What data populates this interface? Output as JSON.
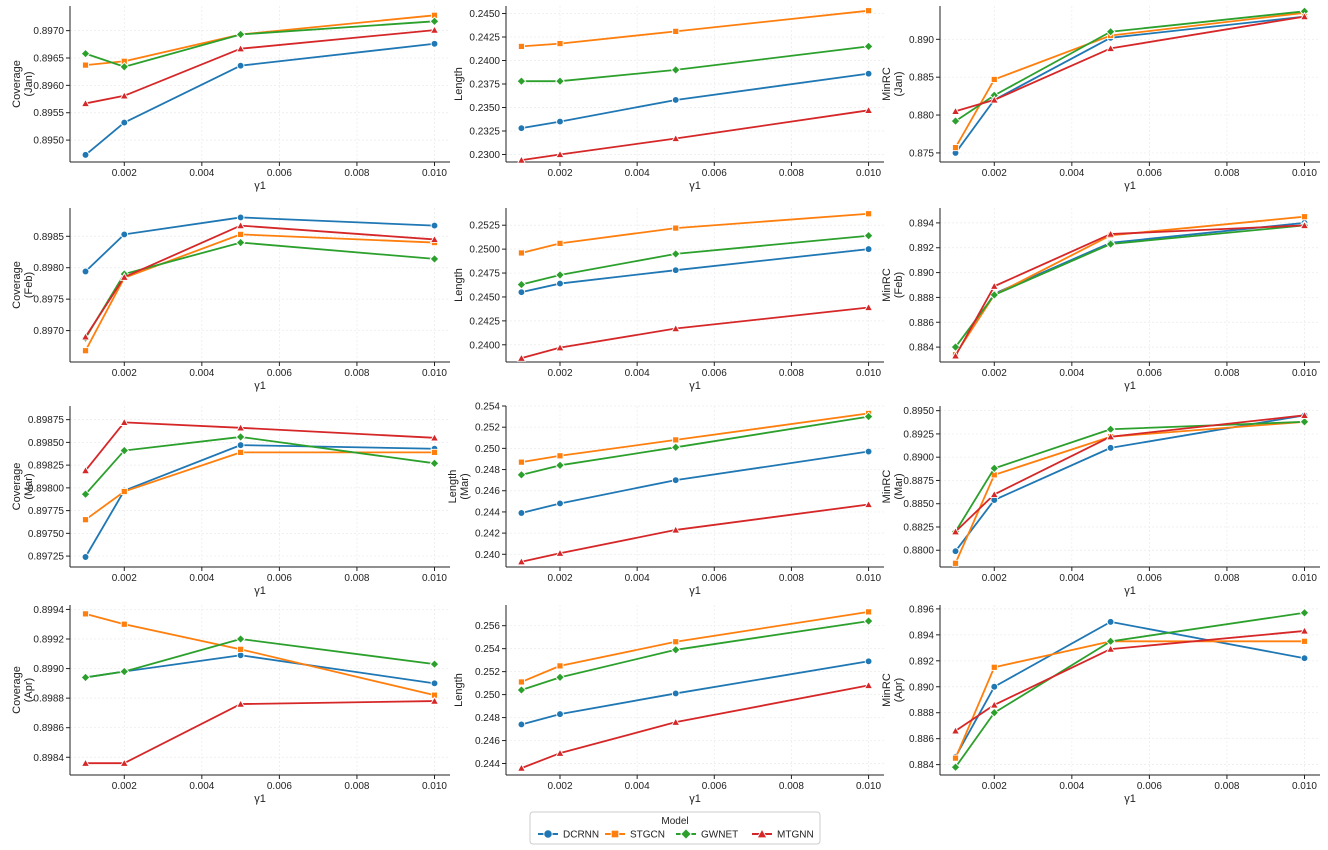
{
  "chart_data": [
    {
      "type": "line",
      "row": 0,
      "col": 0,
      "xlabel": "γ1",
      "ylabel": [
        "Coverage",
        "(Jan)"
      ],
      "xlim": [
        0.0006,
        0.0104
      ],
      "ylim": [
        0.8946,
        0.89745
      ],
      "xticks": [
        0.002,
        0.004,
        0.006,
        0.008,
        0.01
      ],
      "xtick_labels": [
        "0.002",
        "0.004",
        "0.006",
        "0.008",
        "0.010"
      ],
      "yticks": [
        0.895,
        0.8955,
        0.896,
        0.8965,
        0.897
      ],
      "ytick_labels": [
        "0.8950",
        "0.8955",
        "0.8960",
        "0.8965",
        "0.8970"
      ],
      "x": [
        0.001,
        0.002,
        0.005,
        0.01
      ],
      "series": [
        {
          "name": "DCRNN",
          "values": [
            0.89473,
            0.89532,
            0.89636,
            0.89676
          ]
        },
        {
          "name": "STGCN",
          "values": [
            0.89637,
            0.89644,
            0.89693,
            0.89728
          ]
        },
        {
          "name": "GWNET",
          "values": [
            0.89658,
            0.89634,
            0.89693,
            0.89717
          ]
        },
        {
          "name": "MTGNN",
          "values": [
            0.89567,
            0.89581,
            0.89667,
            0.89701
          ]
        }
      ]
    },
    {
      "type": "line",
      "row": 0,
      "col": 1,
      "xlabel": "γ1",
      "ylabel": [
        "Length"
      ],
      "xlim": [
        0.0006,
        0.0104
      ],
      "ylim": [
        0.2292,
        0.2458
      ],
      "xticks": [
        0.002,
        0.004,
        0.006,
        0.008,
        0.01
      ],
      "xtick_labels": [
        "0.002",
        "0.004",
        "0.006",
        "0.008",
        "0.010"
      ],
      "yticks": [
        0.23,
        0.2325,
        0.235,
        0.2375,
        0.24,
        0.2425,
        0.245
      ],
      "ytick_labels": [
        "0.2300",
        "0.2325",
        "0.2350",
        "0.2375",
        "0.2400",
        "0.2425",
        "0.2450"
      ],
      "x": [
        0.001,
        0.002,
        0.005,
        0.01
      ],
      "series": [
        {
          "name": "DCRNN",
          "values": [
            0.2328,
            0.2335,
            0.2358,
            0.2386
          ]
        },
        {
          "name": "STGCN",
          "values": [
            0.2415,
            0.2418,
            0.2431,
            0.2453
          ]
        },
        {
          "name": "GWNET",
          "values": [
            0.2378,
            0.2378,
            0.239,
            0.2415
          ]
        },
        {
          "name": "MTGNN",
          "values": [
            0.2294,
            0.23,
            0.2317,
            0.2347
          ]
        }
      ]
    },
    {
      "type": "line",
      "row": 0,
      "col": 2,
      "xlabel": "γ1",
      "ylabel": [
        "MinRC",
        "(Jan)"
      ],
      "xlim": [
        0.0006,
        0.0104
      ],
      "ylim": [
        0.8738,
        0.8944
      ],
      "xticks": [
        0.002,
        0.004,
        0.006,
        0.008,
        0.01
      ],
      "xtick_labels": [
        "0.002",
        "0.004",
        "0.006",
        "0.008",
        "0.010"
      ],
      "yticks": [
        0.875,
        0.88,
        0.885,
        0.89
      ],
      "ytick_labels": [
        "0.875",
        "0.880",
        "0.885",
        "0.890"
      ],
      "x": [
        0.001,
        0.002,
        0.005,
        0.01
      ],
      "series": [
        {
          "name": "DCRNN",
          "values": [
            0.875,
            0.882,
            0.8902,
            0.893
          ]
        },
        {
          "name": "STGCN",
          "values": [
            0.8757,
            0.8847,
            0.8905,
            0.8935
          ]
        },
        {
          "name": "GWNET",
          "values": [
            0.8792,
            0.8826,
            0.891,
            0.8937
          ]
        },
        {
          "name": "MTGNN",
          "values": [
            0.8805,
            0.882,
            0.8888,
            0.893
          ]
        }
      ]
    },
    {
      "type": "line",
      "row": 1,
      "col": 0,
      "xlabel": "γ1",
      "ylabel": [
        "Coverage",
        "(Feb)"
      ],
      "xlim": [
        0.0006,
        0.0104
      ],
      "ylim": [
        0.8965,
        0.89895
      ],
      "xticks": [
        0.002,
        0.004,
        0.006,
        0.008,
        0.01
      ],
      "xtick_labels": [
        "0.002",
        "0.004",
        "0.006",
        "0.008",
        "0.010"
      ],
      "yticks": [
        0.897,
        0.8975,
        0.898,
        0.8985
      ],
      "ytick_labels": [
        "0.8970",
        "0.8975",
        "0.8980",
        "0.8985"
      ],
      "x": [
        0.001,
        0.002,
        0.005,
        0.01
      ],
      "series": [
        {
          "name": "DCRNN",
          "values": [
            0.89794,
            0.89853,
            0.8988,
            0.89867
          ]
        },
        {
          "name": "STGCN",
          "values": [
            0.89668,
            0.89784,
            0.89853,
            0.8984
          ]
        },
        {
          "name": "GWNET",
          "values": [
            0.89688,
            0.8979,
            0.8984,
            0.89814
          ]
        },
        {
          "name": "MTGNN",
          "values": [
            0.8969,
            0.89785,
            0.89867,
            0.89845
          ]
        }
      ]
    },
    {
      "type": "line",
      "row": 1,
      "col": 1,
      "xlabel": "γ1",
      "ylabel": [
        "Length"
      ],
      "xlim": [
        0.0006,
        0.0104
      ],
      "ylim": [
        0.2382,
        0.2543
      ],
      "xticks": [
        0.002,
        0.004,
        0.006,
        0.008,
        0.01
      ],
      "xtick_labels": [
        "0.002",
        "0.004",
        "0.006",
        "0.008",
        "0.010"
      ],
      "yticks": [
        0.24,
        0.2425,
        0.245,
        0.2475,
        0.25,
        0.2525
      ],
      "ytick_labels": [
        "0.2400",
        "0.2425",
        "0.2450",
        "0.2475",
        "0.2500",
        "0.2525"
      ],
      "x": [
        0.001,
        0.002,
        0.005,
        0.01
      ],
      "series": [
        {
          "name": "DCRNN",
          "values": [
            0.2455,
            0.2464,
            0.2478,
            0.25
          ]
        },
        {
          "name": "STGCN",
          "values": [
            0.2496,
            0.2506,
            0.2522,
            0.2537
          ]
        },
        {
          "name": "GWNET",
          "values": [
            0.2463,
            0.2473,
            0.2495,
            0.2514
          ]
        },
        {
          "name": "MTGNN",
          "values": [
            0.2386,
            0.2397,
            0.2417,
            0.2439
          ]
        }
      ]
    },
    {
      "type": "line",
      "row": 1,
      "col": 2,
      "xlabel": "γ1",
      "ylabel": [
        "MinRC",
        "(Feb)"
      ],
      "xlim": [
        0.0006,
        0.0104
      ],
      "ylim": [
        0.8828,
        0.8952
      ],
      "xticks": [
        0.002,
        0.004,
        0.006,
        0.008,
        0.01
      ],
      "xtick_labels": [
        "0.002",
        "0.004",
        "0.006",
        "0.008",
        "0.010"
      ],
      "yticks": [
        0.884,
        0.886,
        0.888,
        0.89,
        0.892,
        0.894
      ],
      "ytick_labels": [
        "0.884",
        "0.886",
        "0.888",
        "0.890",
        "0.892",
        "0.894"
      ],
      "x": [
        0.001,
        0.002,
        0.005,
        0.01
      ],
      "series": [
        {
          "name": "DCRNN",
          "values": [
            0.8834,
            0.8883,
            0.8924,
            0.894
          ]
        },
        {
          "name": "STGCN",
          "values": [
            0.8834,
            0.8882,
            0.893,
            0.8945
          ]
        },
        {
          "name": "GWNET",
          "values": [
            0.884,
            0.8882,
            0.8923,
            0.8938
          ]
        },
        {
          "name": "MTGNN",
          "values": [
            0.8833,
            0.8889,
            0.8931,
            0.8938
          ]
        }
      ]
    },
    {
      "type": "line",
      "row": 2,
      "col": 0,
      "xlabel": "γ1",
      "ylabel": [
        "Coverage",
        "(Mar)"
      ],
      "xlim": [
        0.0006,
        0.0104
      ],
      "ylim": [
        0.89713,
        0.8989
      ],
      "xticks": [
        0.002,
        0.004,
        0.006,
        0.008,
        0.01
      ],
      "xtick_labels": [
        "0.002",
        "0.004",
        "0.006",
        "0.008",
        "0.010"
      ],
      "yticks": [
        0.89725,
        0.8975,
        0.89775,
        0.898,
        0.89825,
        0.8985,
        0.89875
      ],
      "ytick_labels": [
        "0.89725",
        "0.89750",
        "0.89775",
        "0.89800",
        "0.89825",
        "0.89850",
        "0.89875"
      ],
      "x": [
        0.001,
        0.002,
        0.005,
        0.01
      ],
      "series": [
        {
          "name": "DCRNN",
          "values": [
            0.89724,
            0.89797,
            0.89847,
            0.89843
          ]
        },
        {
          "name": "STGCN",
          "values": [
            0.89765,
            0.89796,
            0.89839,
            0.89839
          ]
        },
        {
          "name": "GWNET",
          "values": [
            0.89793,
            0.89841,
            0.89856,
            0.89827
          ]
        },
        {
          "name": "MTGNN",
          "values": [
            0.89819,
            0.89872,
            0.89866,
            0.89855
          ]
        }
      ]
    },
    {
      "type": "line",
      "row": 2,
      "col": 1,
      "xlabel": "γ1",
      "ylabel": [
        "Length",
        "(Mar)"
      ],
      "xlim": [
        0.0006,
        0.0104
      ],
      "ylim": [
        0.2388,
        0.254
      ],
      "xticks": [
        0.002,
        0.004,
        0.006,
        0.008,
        0.01
      ],
      "xtick_labels": [
        "0.002",
        "0.004",
        "0.006",
        "0.008",
        "0.010"
      ],
      "yticks": [
        0.24,
        0.242,
        0.244,
        0.246,
        0.248,
        0.25,
        0.252,
        0.254
      ],
      "ytick_labels": [
        "0.240",
        "0.242",
        "0.244",
        "0.246",
        "0.248",
        "0.250",
        "0.252",
        "0.254"
      ],
      "x": [
        0.001,
        0.002,
        0.005,
        0.01
      ],
      "series": [
        {
          "name": "DCRNN",
          "values": [
            0.2439,
            0.2448,
            0.247,
            0.2497
          ]
        },
        {
          "name": "STGCN",
          "values": [
            0.2487,
            0.2493,
            0.2508,
            0.2533
          ]
        },
        {
          "name": "GWNET",
          "values": [
            0.2475,
            0.2484,
            0.2501,
            0.253
          ]
        },
        {
          "name": "MTGNN",
          "values": [
            0.2393,
            0.2401,
            0.2423,
            0.2447
          ]
        }
      ]
    },
    {
      "type": "line",
      "row": 2,
      "col": 2,
      "xlabel": "γ1",
      "ylabel": [
        "MinRC",
        "(Mar)"
      ],
      "xlim": [
        0.0006,
        0.0104
      ],
      "ylim": [
        0.8782,
        0.8955
      ],
      "xticks": [
        0.002,
        0.004,
        0.006,
        0.008,
        0.01
      ],
      "xtick_labels": [
        "0.002",
        "0.004",
        "0.006",
        "0.008",
        "0.010"
      ],
      "yticks": [
        0.88,
        0.8825,
        0.885,
        0.8875,
        0.89,
        0.8925,
        0.895
      ],
      "ytick_labels": [
        "0.8800",
        "0.8825",
        "0.8850",
        "0.8875",
        "0.8900",
        "0.8925",
        "0.8950"
      ],
      "x": [
        0.001,
        0.002,
        0.005,
        0.01
      ],
      "series": [
        {
          "name": "DCRNN",
          "values": [
            0.8799,
            0.8854,
            0.891,
            0.8945
          ]
        },
        {
          "name": "STGCN",
          "values": [
            0.8786,
            0.8881,
            0.8922,
            0.8938
          ]
        },
        {
          "name": "GWNET",
          "values": [
            0.882,
            0.8888,
            0.893,
            0.8938
          ]
        },
        {
          "name": "MTGNN",
          "values": [
            0.882,
            0.886,
            0.8922,
            0.8945
          ]
        }
      ]
    },
    {
      "type": "line",
      "row": 3,
      "col": 0,
      "xlabel": "γ1",
      "ylabel": [
        "Coverage",
        "(Apr)"
      ],
      "xlim": [
        0.0006,
        0.0104
      ],
      "ylim": [
        0.89828,
        0.89943
      ],
      "xticks": [
        0.002,
        0.004,
        0.006,
        0.008,
        0.01
      ],
      "xtick_labels": [
        "0.002",
        "0.004",
        "0.006",
        "0.008",
        "0.010"
      ],
      "yticks": [
        0.8984,
        0.8986,
        0.8988,
        0.899,
        0.8992,
        0.8994
      ],
      "ytick_labels": [
        "0.8984",
        "0.8986",
        "0.8988",
        "0.8990",
        "0.8992",
        "0.8994"
      ],
      "x": [
        0.001,
        0.002,
        0.005,
        0.01
      ],
      "series": [
        {
          "name": "DCRNN",
          "values": [
            0.89894,
            0.89898,
            0.89909,
            0.8989
          ]
        },
        {
          "name": "STGCN",
          "values": [
            0.89937,
            0.8993,
            0.89913,
            0.89882
          ]
        },
        {
          "name": "GWNET",
          "values": [
            0.89894,
            0.89898,
            0.8992,
            0.89903
          ]
        },
        {
          "name": "MTGNN",
          "values": [
            0.89836,
            0.89836,
            0.89876,
            0.89878
          ]
        }
      ]
    },
    {
      "type": "line",
      "row": 3,
      "col": 1,
      "xlabel": "γ1",
      "ylabel": [
        "Length"
      ],
      "xlim": [
        0.0006,
        0.0104
      ],
      "ylim": [
        0.243,
        0.2578
      ],
      "xticks": [
        0.002,
        0.004,
        0.006,
        0.008,
        0.01
      ],
      "xtick_labels": [
        "0.002",
        "0.004",
        "0.006",
        "0.008",
        "0.010"
      ],
      "yticks": [
        0.244,
        0.246,
        0.248,
        0.25,
        0.252,
        0.254,
        0.256
      ],
      "ytick_labels": [
        "0.244",
        "0.246",
        "0.248",
        "0.250",
        "0.252",
        "0.254",
        "0.256"
      ],
      "x": [
        0.001,
        0.002,
        0.005,
        0.01
      ],
      "series": [
        {
          "name": "DCRNN",
          "values": [
            0.2474,
            0.2483,
            0.2501,
            0.2529
          ]
        },
        {
          "name": "STGCN",
          "values": [
            0.2511,
            0.2525,
            0.2546,
            0.2572
          ]
        },
        {
          "name": "GWNET",
          "values": [
            0.2504,
            0.2515,
            0.2539,
            0.2564
          ]
        },
        {
          "name": "MTGNN",
          "values": [
            0.2436,
            0.2449,
            0.2476,
            0.2508
          ]
        }
      ]
    },
    {
      "type": "line",
      "row": 3,
      "col": 2,
      "xlabel": "γ1",
      "ylabel": [
        "MinRC",
        "(Apr)"
      ],
      "xlim": [
        0.0006,
        0.0104
      ],
      "ylim": [
        0.8832,
        0.8963
      ],
      "xticks": [
        0.002,
        0.004,
        0.006,
        0.008,
        0.01
      ],
      "xtick_labels": [
        "0.002",
        "0.004",
        "0.006",
        "0.008",
        "0.010"
      ],
      "yticks": [
        0.884,
        0.886,
        0.888,
        0.89,
        0.892,
        0.894,
        0.896
      ],
      "ytick_labels": [
        "0.884",
        "0.886",
        "0.888",
        "0.890",
        "0.892",
        "0.894",
        "0.896"
      ],
      "x": [
        0.001,
        0.002,
        0.005,
        0.01
      ],
      "series": [
        {
          "name": "DCRNN",
          "values": [
            0.8846,
            0.89,
            0.895,
            0.8922
          ]
        },
        {
          "name": "STGCN",
          "values": [
            0.8845,
            0.8915,
            0.8935,
            0.8935
          ]
        },
        {
          "name": "GWNET",
          "values": [
            0.8838,
            0.888,
            0.8935,
            0.8957
          ]
        },
        {
          "name": "MTGNN",
          "values": [
            0.8866,
            0.8886,
            0.8929,
            0.8943
          ]
        }
      ]
    }
  ],
  "legend": {
    "title": "Model",
    "items": [
      {
        "name": "DCRNN",
        "color": "#1f77b4",
        "marker": "circle"
      },
      {
        "name": "STGCN",
        "color": "#ff7f0e",
        "marker": "square"
      },
      {
        "name": "GWNET",
        "color": "#2ca02c",
        "marker": "diamond"
      },
      {
        "name": "MTGNN",
        "color": "#d62728",
        "marker": "triangle"
      }
    ]
  }
}
